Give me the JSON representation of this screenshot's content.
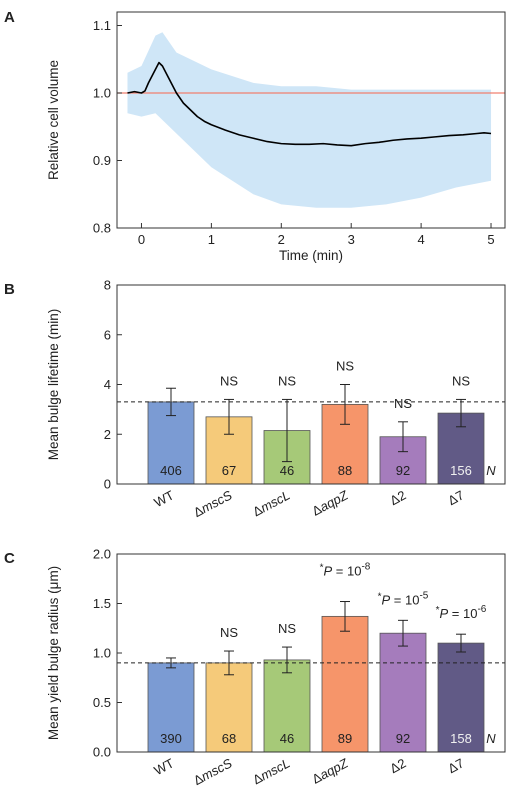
{
  "chart_data": [
    {
      "panel": "A",
      "type": "line",
      "xlabel": "Time (min)",
      "ylabel": "Relative cell volume",
      "xlim": [
        -0.35,
        5.2
      ],
      "ylim": [
        0.8,
        1.12
      ],
      "xticks": [
        "0",
        "1",
        "2",
        "3",
        "4",
        "5"
      ],
      "yticks": [
        "0.8",
        "0.9",
        "1.0",
        "1.1"
      ],
      "reference_line": {
        "y": 1.0,
        "color": "#f08070"
      },
      "band_color": "#cfe6f7",
      "line_color": "#000000",
      "series": [
        {
          "values": [
            [
              -0.2,
              1.0
            ],
            [
              -0.1,
              1.002
            ],
            [
              0.0,
              1.0
            ],
            [
              0.05,
              1.003
            ],
            [
              0.1,
              1.015
            ],
            [
              0.15,
              1.025
            ],
            [
              0.2,
              1.035
            ],
            [
              0.25,
              1.045
            ],
            [
              0.3,
              1.04
            ],
            [
              0.35,
              1.03
            ],
            [
              0.4,
              1.02
            ],
            [
              0.5,
              1.0
            ],
            [
              0.6,
              0.985
            ],
            [
              0.7,
              0.975
            ],
            [
              0.8,
              0.965
            ],
            [
              0.9,
              0.958
            ],
            [
              1.0,
              0.953
            ],
            [
              1.2,
              0.945
            ],
            [
              1.4,
              0.938
            ],
            [
              1.6,
              0.933
            ],
            [
              1.8,
              0.928
            ],
            [
              2.0,
              0.925
            ],
            [
              2.2,
              0.924
            ],
            [
              2.4,
              0.924
            ],
            [
              2.6,
              0.925
            ],
            [
              2.8,
              0.923
            ],
            [
              3.0,
              0.922
            ],
            [
              3.2,
              0.925
            ],
            [
              3.4,
              0.927
            ],
            [
              3.6,
              0.93
            ],
            [
              3.8,
              0.932
            ],
            [
              4.0,
              0.933
            ],
            [
              4.2,
              0.935
            ],
            [
              4.4,
              0.937
            ],
            [
              4.6,
              0.938
            ],
            [
              4.8,
              0.94
            ],
            [
              4.9,
              0.941
            ],
            [
              5.0,
              0.94
            ]
          ],
          "band": [
            [
              -0.2,
              0.97,
              1.03
            ],
            [
              0.0,
              0.965,
              1.04
            ],
            [
              0.2,
              0.97,
              1.085
            ],
            [
              0.3,
              0.96,
              1.09
            ],
            [
              0.5,
              0.94,
              1.06
            ],
            [
              0.7,
              0.92,
              1.05
            ],
            [
              1.0,
              0.89,
              1.035
            ],
            [
              1.3,
              0.87,
              1.025
            ],
            [
              1.6,
              0.85,
              1.015
            ],
            [
              2.0,
              0.835,
              1.01
            ],
            [
              2.5,
              0.83,
              1.01
            ],
            [
              3.0,
              0.83,
              1.005
            ],
            [
              3.5,
              0.835,
              1.005
            ],
            [
              4.0,
              0.845,
              1.005
            ],
            [
              4.5,
              0.86,
              1.005
            ],
            [
              5.0,
              0.87,
              1.005
            ]
          ]
        }
      ]
    },
    {
      "panel": "B",
      "type": "bar",
      "ylabel": "Mean bulge lifetime (min)",
      "ylim": [
        0,
        8
      ],
      "yticks": [
        "0",
        "2",
        "4",
        "6",
        "8"
      ],
      "reference_line": {
        "y": 3.3,
        "style": "dashed"
      },
      "categories": [
        "WT",
        "ΔmscS",
        "ΔmscL",
        "ΔaqpZ",
        "Δ2",
        "Δ7"
      ],
      "values": [
        3.3,
        2.7,
        2.15,
        3.2,
        1.9,
        2.85
      ],
      "errors": [
        0.55,
        0.7,
        1.25,
        0.8,
        0.6,
        0.55
      ],
      "n": [
        "406",
        "67",
        "46",
        "88",
        "92",
        "156"
      ],
      "n_label": "N",
      "annotations": [
        "",
        "NS",
        "NS",
        "NS",
        "NS",
        "NS"
      ],
      "colors": [
        "#7b9bd3",
        "#f5ca7a",
        "#a6c978",
        "#f6956a",
        "#a57cbc",
        "#615a86"
      ]
    },
    {
      "panel": "C",
      "type": "bar",
      "ylabel": "Mean yield bulge radius (μm)",
      "ylim": [
        0,
        2.0
      ],
      "yticks": [
        "0.0",
        "0.5",
        "1.0",
        "1.5",
        "2.0"
      ],
      "reference_line": {
        "y": 0.9,
        "style": "dashed"
      },
      "categories": [
        "WT",
        "ΔmscS",
        "ΔmscL",
        "ΔaqpZ",
        "Δ2",
        "Δ7"
      ],
      "values": [
        0.9,
        0.9,
        0.93,
        1.37,
        1.2,
        1.1
      ],
      "errors": [
        0.05,
        0.12,
        0.13,
        0.15,
        0.13,
        0.09
      ],
      "n": [
        "390",
        "68",
        "46",
        "89",
        "92",
        "158"
      ],
      "n_label": "N",
      "annotations": [
        null,
        {
          "text": "NS"
        },
        {
          "text": "NS"
        },
        {
          "prefix": "*",
          "p": "P",
          "eq": " = 10",
          "exp": "-8"
        },
        {
          "prefix": "*",
          "p": "P",
          "eq": " = 10",
          "exp": "-5"
        },
        {
          "prefix": "*",
          "p": "P",
          "eq": " = 10",
          "exp": "-6"
        }
      ],
      "colors": [
        "#7b9bd3",
        "#f5ca7a",
        "#a6c978",
        "#f6956a",
        "#a57cbc",
        "#615a86"
      ]
    }
  ]
}
